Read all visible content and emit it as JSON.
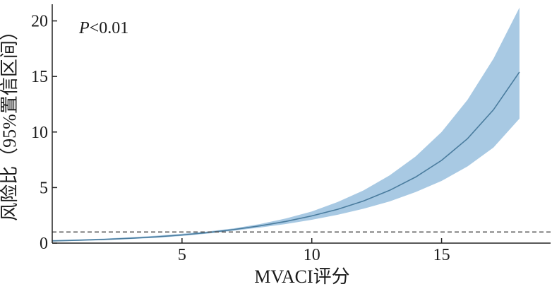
{
  "chart_data": {
    "type": "line",
    "title": "",
    "xlabel": "MVACI评分",
    "ylabel": "风险比（95%置信区间）",
    "annotation": {
      "italic": "P",
      "rest": "<0.01"
    },
    "xlim": [
      0,
      19.2
    ],
    "ylim": [
      0,
      21.5
    ],
    "x_ticks": [
      5,
      10,
      15
    ],
    "y_ticks": [
      0,
      5,
      10,
      15,
      20
    ],
    "reference_line": {
      "y": 1,
      "style": "dashed",
      "color": "#555555"
    },
    "grid": false,
    "legend": "none",
    "colors": {
      "line": "#4a7c9e",
      "band": "#a8c9e3",
      "axis": "#222222"
    },
    "series": [
      {
        "x": [
          0,
          1,
          2,
          3,
          4,
          5,
          6,
          7,
          8,
          9,
          10,
          11,
          12,
          13,
          14,
          15,
          16,
          17,
          18
        ],
        "y": [
          0.2,
          0.26,
          0.33,
          0.43,
          0.56,
          0.73,
          0.95,
          1.22,
          1.55,
          1.95,
          2.45,
          3.05,
          3.8,
          4.75,
          5.95,
          7.45,
          9.4,
          12.0,
          15.4
        ],
        "lower": [
          0.15,
          0.2,
          0.27,
          0.36,
          0.48,
          0.64,
          0.86,
          1.12,
          1.4,
          1.72,
          2.1,
          2.55,
          3.1,
          3.75,
          4.6,
          5.6,
          6.9,
          8.6,
          11.2
        ],
        "upper": [
          0.28,
          0.34,
          0.41,
          0.52,
          0.66,
          0.84,
          1.05,
          1.33,
          1.72,
          2.22,
          2.85,
          3.7,
          4.75,
          6.1,
          7.8,
          10.0,
          12.9,
          16.6,
          21.2
        ]
      }
    ]
  }
}
